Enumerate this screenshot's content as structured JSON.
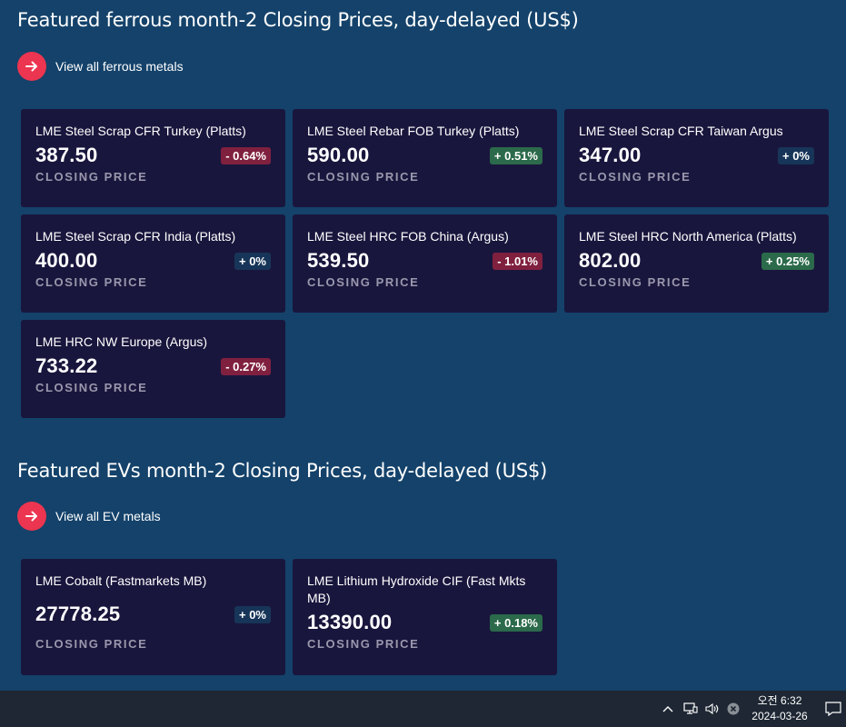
{
  "sections": [
    {
      "title": "Featured ferrous month-2 Closing Prices, day-delayed (US$)",
      "view_all": "View all ferrous metals",
      "cards": [
        {
          "name": "LME Steel Scrap CFR Turkey (Platts)",
          "price": "387.50",
          "change": "- 0.64%",
          "trend": "neg",
          "caption": "CLOSING PRICE"
        },
        {
          "name": "LME Steel Rebar FOB Turkey (Platts)",
          "price": "590.00",
          "change": "+ 0.51%",
          "trend": "pos",
          "caption": "CLOSING PRICE"
        },
        {
          "name": "LME Steel Scrap CFR Taiwan Argus",
          "price": "347.00",
          "change": "+ 0%",
          "trend": "flat",
          "caption": "CLOSING PRICE"
        },
        {
          "name": "LME Steel Scrap CFR India (Platts)",
          "price": "400.00",
          "change": "+ 0%",
          "trend": "flat",
          "caption": "CLOSING PRICE"
        },
        {
          "name": "LME Steel HRC FOB China (Argus)",
          "price": "539.50",
          "change": "- 1.01%",
          "trend": "neg",
          "caption": "CLOSING PRICE"
        },
        {
          "name": "LME Steel HRC North America (Platts)",
          "price": "802.00",
          "change": "+ 0.25%",
          "trend": "pos",
          "caption": "CLOSING PRICE"
        },
        {
          "name": "LME HRC NW Europe (Argus)",
          "price": "733.22",
          "change": "- 0.27%",
          "trend": "neg",
          "caption": "CLOSING PRICE"
        }
      ]
    },
    {
      "title": "Featured EVs month-2 Closing Prices, day-delayed (US$)",
      "view_all": "View all EV metals",
      "cards": [
        {
          "name": "LME Cobalt (Fastmarkets MB)",
          "price": "27778.25",
          "change": "+ 0%",
          "trend": "flat",
          "caption": "CLOSING PRICE"
        },
        {
          "name": "LME Lithium Hydroxide CIF (Fast Mkts MB)",
          "price": "13390.00",
          "change": "+ 0.18%",
          "trend": "pos",
          "caption": "CLOSING PRICE"
        }
      ]
    }
  ],
  "taskbar": {
    "time": "오전 6:32",
    "date": "2024-03-26",
    "icons": [
      "chevron-up-icon",
      "network-icon",
      "volume-icon",
      "close-circle-icon",
      "notification-icon"
    ]
  },
  "colors": {
    "background": "#14426a",
    "card": "#19163d",
    "accent": "#ec3550",
    "negative": "#80203f",
    "positive": "#2b6a4a",
    "neutral": "#173558"
  }
}
